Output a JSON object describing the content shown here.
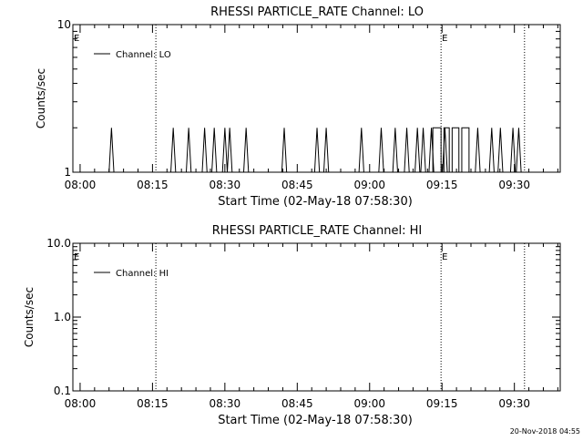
{
  "footer": {
    "timestamp": "20-Nov-2018 04:55"
  },
  "chart_data": [
    {
      "type": "line",
      "title": "RHESSI PARTICLE_RATE Channel: LO",
      "xlabel": "Start Time (02-May-18 07:58:30)",
      "ylabel": "Counts/sec",
      "x_unit": "minutes from 07:58:30",
      "xlim": [
        0,
        101
      ],
      "ylim": [
        1,
        10
      ],
      "y_scale": "log",
      "x_ticks": [
        {
          "x": 1.5,
          "label": "08:00"
        },
        {
          "x": 16.5,
          "label": "08:15"
        },
        {
          "x": 31.5,
          "label": "08:30"
        },
        {
          "x": 46.5,
          "label": "08:45"
        },
        {
          "x": 61.5,
          "label": "09:00"
        },
        {
          "x": 76.5,
          "label": "09:15"
        },
        {
          "x": 91.5,
          "label": "09:30"
        }
      ],
      "y_ticks": [
        {
          "y": 1,
          "label": "1"
        },
        {
          "y": 10,
          "label": "10"
        }
      ],
      "event_lines": [
        {
          "x": 17.2,
          "mark": ""
        },
        {
          "x": 76.3,
          "mark": "E"
        },
        {
          "x": 93.6,
          "mark": ""
        }
      ],
      "start_mark": "E",
      "legend": "top-left",
      "series": [
        {
          "name": "Channel: LO",
          "baseline": 1,
          "spikes": [
            {
              "x": 8.0,
              "y": 2
            },
            {
              "x": 20.8,
              "y": 2
            },
            {
              "x": 24.0,
              "y": 2
            },
            {
              "x": 27.3,
              "y": 2
            },
            {
              "x": 29.3,
              "y": 2
            },
            {
              "x": 31.5,
              "y": 2
            },
            {
              "x": 32.5,
              "y": 2
            },
            {
              "x": 35.9,
              "y": 2
            },
            {
              "x": 43.8,
              "y": 2
            },
            {
              "x": 50.6,
              "y": 2
            },
            {
              "x": 52.5,
              "y": 2
            },
            {
              "x": 59.8,
              "y": 2
            },
            {
              "x": 63.9,
              "y": 2
            },
            {
              "x": 66.8,
              "y": 2
            },
            {
              "x": 69.2,
              "y": 2
            },
            {
              "x": 71.4,
              "y": 2
            },
            {
              "x": 72.6,
              "y": 2
            },
            {
              "x": 74.3,
              "y": 2
            },
            {
              "x": 77.1,
              "y": 2
            },
            {
              "x": 83.9,
              "y": 2
            },
            {
              "x": 86.8,
              "y": 2
            },
            {
              "x": 88.6,
              "y": 2
            },
            {
              "x": 91.2,
              "y": 2
            },
            {
              "x": 92.4,
              "y": 2
            }
          ],
          "blocks": [
            {
              "x_start": 74.6,
              "x_end": 82.1,
              "y": 2,
              "dips": [
                76.6,
                78.3,
                80.3
              ]
            }
          ]
        }
      ]
    },
    {
      "type": "line",
      "title": "RHESSI PARTICLE_RATE Channel: HI",
      "xlabel": "Start Time (02-May-18 07:58:30)",
      "ylabel": "Counts/sec",
      "x_unit": "minutes from 07:58:30",
      "xlim": [
        0,
        101
      ],
      "ylim": [
        0.1,
        10
      ],
      "y_scale": "log",
      "x_ticks": [
        {
          "x": 1.5,
          "label": "08:00"
        },
        {
          "x": 16.5,
          "label": "08:15"
        },
        {
          "x": 31.5,
          "label": "08:30"
        },
        {
          "x": 46.5,
          "label": "08:45"
        },
        {
          "x": 61.5,
          "label": "09:00"
        },
        {
          "x": 76.5,
          "label": "09:15"
        },
        {
          "x": 91.5,
          "label": "09:30"
        }
      ],
      "y_ticks": [
        {
          "y": 0.1,
          "label": "0.1"
        },
        {
          "y": 1,
          "label": "1.0"
        },
        {
          "y": 10,
          "label": "10.0"
        }
      ],
      "event_lines": [
        {
          "x": 17.2,
          "mark": ""
        },
        {
          "x": 76.3,
          "mark": "E"
        },
        {
          "x": 93.6,
          "mark": ""
        }
      ],
      "start_mark": "E",
      "legend": "top-left",
      "series": [
        {
          "name": "Channel: HI",
          "baseline": null,
          "spikes": [],
          "blocks": []
        }
      ]
    }
  ]
}
